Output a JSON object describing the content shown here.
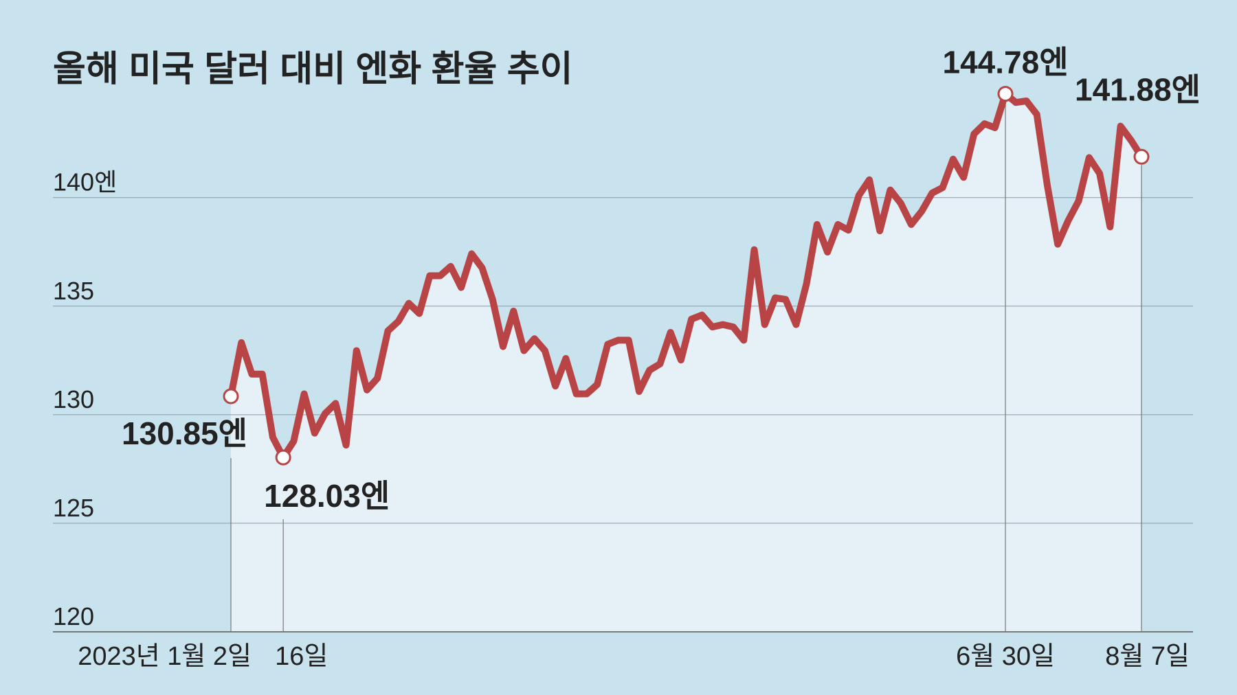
{
  "chart_data": {
    "type": "line",
    "title": "올해 미국 달러 대비 엔화 환율 추이",
    "categories": [
      "2023년 1월 2일",
      null,
      null,
      null,
      null,
      "16일",
      null,
      null,
      null,
      null,
      null,
      null,
      null,
      null,
      null,
      null,
      null,
      null,
      null,
      null,
      null,
      null,
      null,
      null,
      null,
      null,
      null,
      null,
      null,
      null,
      null,
      null,
      null,
      null,
      null,
      null,
      null,
      null,
      null,
      null,
      null,
      null,
      null,
      null,
      null,
      null,
      null,
      null,
      null,
      null,
      null,
      null,
      null,
      null,
      null,
      null,
      null,
      null,
      null,
      null,
      null,
      null,
      null,
      null,
      null,
      null,
      null,
      null,
      null,
      null,
      null,
      null,
      null,
      null,
      "6월 30일",
      null,
      null,
      null,
      null,
      null,
      null,
      null,
      null,
      null,
      null,
      null,
      null,
      "8월 7일"
    ],
    "values": [
      130.85,
      133.32,
      131.87,
      131.87,
      128.96,
      128.03,
      128.78,
      130.96,
      129.15,
      130.05,
      130.52,
      128.6,
      132.95,
      131.14,
      131.68,
      133.86,
      134.3,
      135.13,
      134.66,
      136.4,
      136.4,
      136.83,
      135.86,
      137.41,
      136.76,
      135.31,
      133.14,
      134.77,
      132.95,
      133.5,
      132.95,
      131.32,
      132.59,
      130.96,
      130.96,
      131.39,
      133.24,
      133.43,
      133.43,
      131.07,
      132.05,
      132.34,
      133.79,
      132.52,
      134.4,
      134.59,
      134.04,
      134.15,
      134.04,
      133.43,
      137.6,
      134.15,
      135.38,
      135.31,
      134.15,
      136.04,
      138.76,
      137.49,
      138.76,
      138.5,
      140.1,
      140.82,
      138.47,
      140.35,
      139.74,
      138.76,
      139.37,
      140.21,
      140.46,
      141.77,
      140.93,
      142.93,
      143.4,
      143.22,
      144.78,
      144.38,
      144.45,
      143.83,
      140.57,
      137.85,
      138.94,
      139.85,
      141.84,
      141.11,
      138.65,
      143.29,
      142.64,
      141.88
    ],
    "value_labels": [
      "130.85엔",
      null,
      null,
      null,
      null,
      "128.03엔",
      null,
      null,
      null,
      null,
      null,
      null,
      null,
      null,
      null,
      null,
      null,
      null,
      null,
      null,
      null,
      null,
      null,
      null,
      null,
      null,
      null,
      null,
      null,
      null,
      null,
      null,
      null,
      null,
      null,
      null,
      null,
      null,
      null,
      null,
      null,
      null,
      null,
      null,
      null,
      null,
      null,
      null,
      null,
      null,
      null,
      null,
      null,
      null,
      null,
      null,
      null,
      null,
      null,
      null,
      null,
      null,
      null,
      null,
      null,
      null,
      null,
      null,
      null,
      null,
      null,
      null,
      null,
      null,
      "144.78엔",
      null,
      null,
      null,
      null,
      null,
      null,
      null,
      null,
      null,
      null,
      null,
      null,
      "141.88엔"
    ],
    "color": "#b84446",
    "ylim": [
      120,
      146
    ],
    "yticks": [
      120,
      125,
      130,
      135,
      {
        "value": 140,
        "label": "140엔"
      }
    ],
    "grid": true
  }
}
